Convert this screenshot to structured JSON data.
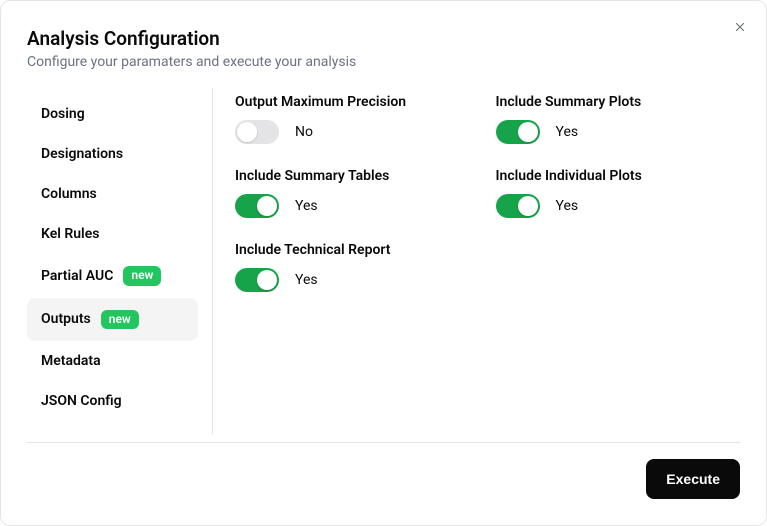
{
  "header": {
    "title": "Analysis Configuration",
    "subtitle": "Configure your paramaters and execute your analysis"
  },
  "sidebar": {
    "items": [
      {
        "label": "Dosing",
        "badge": null,
        "active": false
      },
      {
        "label": "Designations",
        "badge": null,
        "active": false
      },
      {
        "label": "Columns",
        "badge": null,
        "active": false
      },
      {
        "label": "Kel Rules",
        "badge": null,
        "active": false
      },
      {
        "label": "Partial AUC",
        "badge": "new",
        "active": false
      },
      {
        "label": "Outputs",
        "badge": "new",
        "active": true
      },
      {
        "label": "Metadata",
        "badge": null,
        "active": false
      },
      {
        "label": "JSON Config",
        "badge": null,
        "active": false
      }
    ]
  },
  "settings": [
    {
      "label": "Output Maximum Precision",
      "on": false,
      "value_text": "No"
    },
    {
      "label": "Include Summary Plots",
      "on": true,
      "value_text": "Yes"
    },
    {
      "label": "Include Summary Tables",
      "on": true,
      "value_text": "Yes"
    },
    {
      "label": "Include Individual Plots",
      "on": true,
      "value_text": "Yes"
    },
    {
      "label": "Include Technical Report",
      "on": true,
      "value_text": "Yes"
    }
  ],
  "footer": {
    "execute_label": "Execute"
  },
  "colors": {
    "badge_bg": "#22c55e",
    "toggle_on": "#16a34a",
    "toggle_off": "#e4e4e7",
    "active_bg": "#f4f4f5",
    "text": "#0a0a0a",
    "muted": "#6b7280",
    "border": "#e5e5e5",
    "button_bg": "#0a0a0a",
    "button_text": "#ffffff"
  }
}
